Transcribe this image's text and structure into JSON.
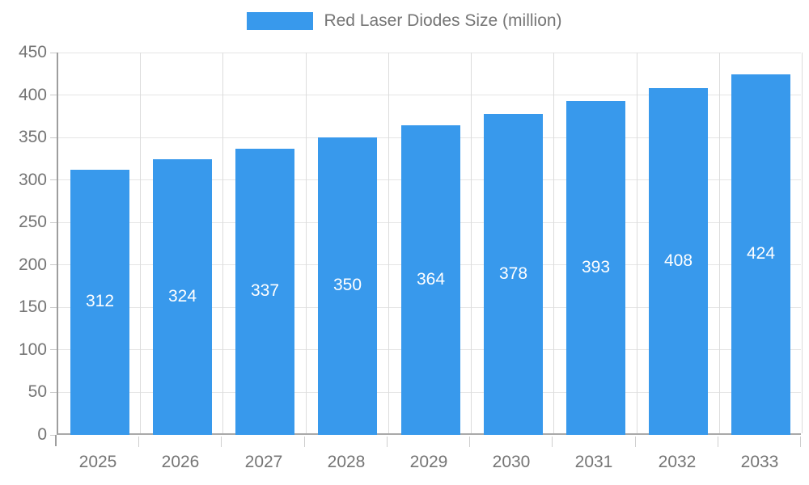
{
  "legend": {
    "label": "Red Laser Diodes Size (million)",
    "position": "top"
  },
  "colors": {
    "bar": "#3899EC",
    "axis_line": "#9E9E9E",
    "bottom_axis_line": "#A9A9A9",
    "gridline": "#E5E5E5",
    "tick_text": "#757575",
    "value_label_text": "#FFFFFF",
    "background": "#FFFFFF"
  },
  "chart_data": {
    "type": "bar",
    "title": "",
    "xlabel": "",
    "ylabel": "",
    "categories": [
      "2025",
      "2026",
      "2027",
      "2028",
      "2029",
      "2030",
      "2031",
      "2032",
      "2033"
    ],
    "series": [
      {
        "name": "Red Laser Diodes Size (million)",
        "values": [
          312,
          324,
          337,
          350,
          364,
          378,
          393,
          408,
          424
        ]
      }
    ],
    "value_labels_shown": true,
    "value_label_position": "inside-center",
    "ylim": [
      0,
      450
    ],
    "ytick_step": 50,
    "yticks": [
      0,
      50,
      100,
      150,
      200,
      250,
      300,
      350,
      400,
      450
    ],
    "grid": true,
    "legend_position": "top-center"
  }
}
